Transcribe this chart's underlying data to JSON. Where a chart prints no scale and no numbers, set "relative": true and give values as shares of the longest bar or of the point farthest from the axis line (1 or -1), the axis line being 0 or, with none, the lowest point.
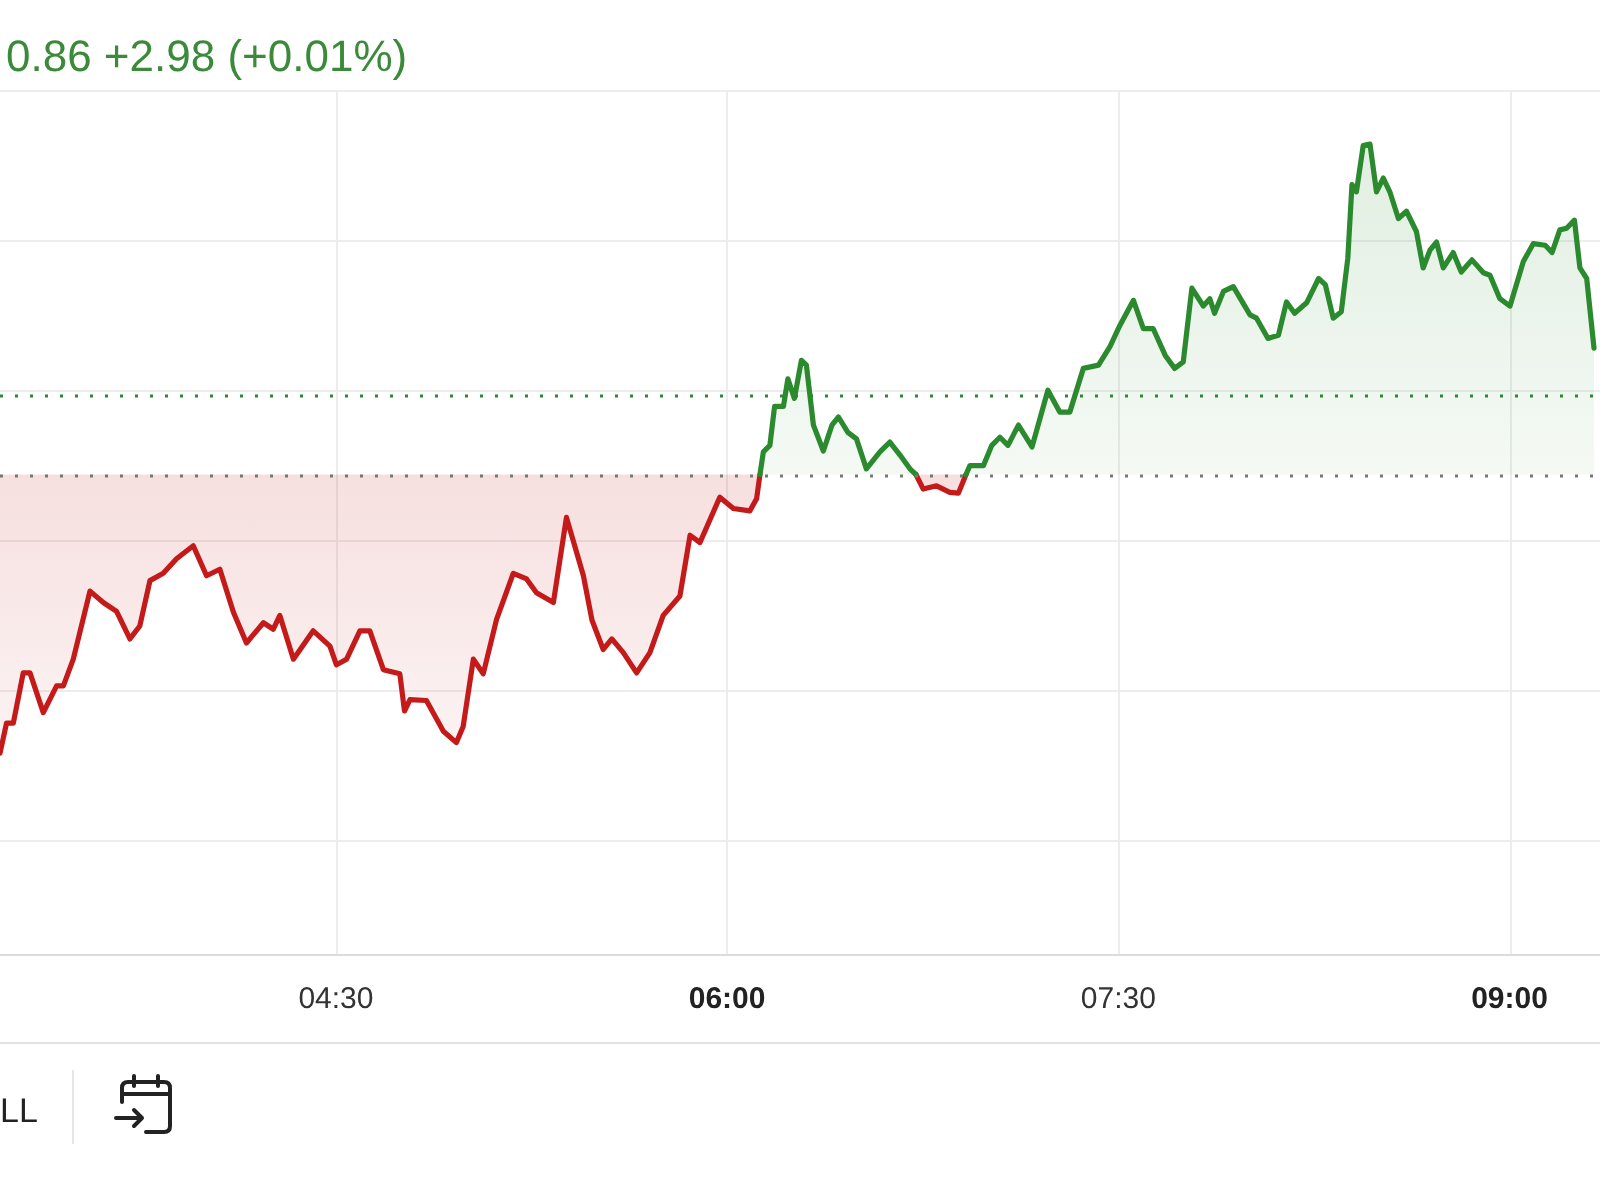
{
  "chart_data": {
    "type": "line",
    "title": "0.86 +2.98 (+0.01%)",
    "relative": true,
    "x": [
      3.212,
      3.237,
      3.263,
      3.301,
      3.327,
      3.378,
      3.429,
      3.455,
      3.493,
      3.557,
      3.608,
      3.659,
      3.71,
      3.748,
      3.787,
      3.838,
      3.889,
      3.953,
      4.004,
      4.055,
      4.107,
      4.157,
      4.222,
      4.26,
      4.285,
      4.337,
      4.413,
      4.477,
      4.502,
      4.541,
      4.592,
      4.63,
      4.682,
      4.745,
      4.763,
      4.784,
      4.847,
      4.912,
      4.962,
      4.988,
      5.027,
      5.065,
      5.116,
      5.18,
      5.231,
      5.269,
      5.334,
      5.384,
      5.449,
      5.482,
      5.525,
      5.558,
      5.602,
      5.653,
      5.704,
      5.755,
      5.819,
      5.858,
      5.896,
      5.972,
      6.024,
      6.087,
      6.113,
      6.126,
      6.139,
      6.164,
      6.182,
      6.216,
      6.233,
      6.258,
      6.285,
      6.304,
      6.331,
      6.369,
      6.402,
      6.427,
      6.463,
      6.496,
      6.534,
      6.586,
      6.624,
      6.663,
      6.701,
      6.724,
      6.752,
      6.803,
      6.854,
      6.887,
      6.916,
      6.931,
      6.983,
      7.015,
      7.046,
      7.077,
      7.117,
      7.169,
      7.23,
      7.276,
      7.314,
      7.366,
      7.424,
      7.468,
      7.506,
      7.558,
      7.596,
      7.634,
      7.68,
      7.716,
      7.749,
      7.782,
      7.826,
      7.851,
      7.869,
      7.903,
      7.941,
      8.005,
      8.03,
      8.074,
      8.114,
      8.145,
      8.176,
      8.222,
      8.268,
      8.294,
      8.324,
      8.355,
      8.38,
      8.396,
      8.413,
      8.439,
      8.465,
      8.49,
      8.516,
      8.541,
      8.574,
      8.605,
      8.643,
      8.669,
      8.695,
      8.72,
      8.746,
      8.784,
      8.815,
      8.856,
      8.9,
      8.925,
      8.963,
      9.002,
      9.053,
      9.091,
      9.137,
      9.163,
      9.193,
      9.219,
      9.249,
      9.27,
      9.296,
      9.324
    ],
    "series": [
      {
        "color": "#c41a1a",
        "values": [
          0.248,
          0.285,
          0.285,
          0.347,
          0.347,
          0.298,
          0.331,
          0.331,
          0.364,
          0.448,
          0.434,
          0.423,
          0.389,
          0.405,
          0.461,
          0.47,
          0.488,
          0.504,
          0.467,
          0.475,
          0.422,
          0.384,
          0.409,
          0.401,
          0.418,
          0.364,
          0.399,
          0.38,
          0.357,
          0.364,
          0.399,
          0.399,
          0.351,
          0.346,
          0.3,
          0.314,
          0.313,
          0.275,
          0.261,
          0.281,
          0.364,
          0.346,
          0.413,
          0.47,
          0.463,
          0.446,
          0.434,
          0.539,
          0.467,
          0.412,
          0.376,
          0.389,
          0.372,
          0.347,
          0.372,
          0.418,
          0.442,
          0.517,
          0.508,
          0.564,
          0.55,
          0.547,
          0.562,
          0.592,
          null,
          null,
          null,
          null,
          null,
          null,
          null,
          null,
          null,
          null,
          null,
          null,
          null,
          null,
          null,
          null,
          null,
          null,
          null,
          0.592,
          0.574,
          0.578,
          0.57,
          0.569,
          0.592,
          null,
          null,
          null,
          null,
          null,
          null,
          null,
          null,
          null,
          null,
          null,
          null,
          null,
          null,
          null,
          null,
          null,
          null,
          null,
          null,
          null,
          null,
          null,
          null,
          null,
          null,
          null,
          null,
          null,
          null,
          null,
          null,
          null,
          null,
          null,
          null,
          null,
          null,
          null,
          null,
          null,
          null,
          null,
          null,
          null,
          null,
          null,
          null,
          null,
          null,
          null,
          null,
          null,
          null,
          null,
          null,
          null,
          null,
          null,
          null,
          null,
          null,
          null,
          null,
          null,
          null,
          null,
          null,
          null
        ],
        "lower": [
          0.248,
          0.285,
          0.285,
          0.347,
          0.347,
          0.298,
          0.331,
          0.331,
          0.364,
          0.448,
          0.434,
          0.423,
          0.389,
          0.405,
          0.461,
          0.47,
          0.488,
          0.504,
          0.467,
          0.475,
          0.422,
          0.384,
          0.409,
          0.401,
          0.418,
          0.364,
          0.399,
          0.38,
          0.357,
          0.364,
          0.399,
          0.399,
          0.351,
          0.346,
          0.3,
          0.314,
          0.313,
          0.275,
          0.261,
          0.281,
          0.364,
          0.346,
          0.413,
          0.47,
          0.463,
          0.446,
          0.434,
          0.539,
          0.467,
          0.412,
          0.376,
          0.389,
          0.372,
          0.347,
          0.372,
          0.418,
          0.442,
          0.517,
          0.508,
          0.564,
          0.55,
          0.547,
          0.562,
          0.592,
          null,
          null,
          null,
          null,
          null,
          null,
          null,
          null,
          null,
          null,
          null,
          null,
          null,
          null,
          null,
          null,
          null,
          null,
          null,
          0.592,
          0.574,
          0.578,
          0.57,
          0.569,
          0.592,
          null,
          null,
          null,
          null,
          null,
          null,
          null,
          null,
          null,
          null,
          null,
          null,
          null,
          null,
          null,
          null,
          null,
          null,
          null,
          null,
          null,
          null,
          null,
          null,
          null,
          null,
          null,
          null,
          null,
          null,
          null,
          null,
          null,
          null,
          null,
          null,
          null,
          null,
          null,
          null,
          null,
          null,
          null,
          null,
          null,
          null,
          null,
          null,
          null,
          null,
          null,
          null,
          null,
          null,
          null,
          null,
          null,
          null,
          null,
          null,
          null,
          null,
          null,
          null,
          null,
          null,
          null,
          null,
          null
        ],
        "upper": [
          0.592,
          0.592,
          0.592,
          0.592,
          0.592,
          0.592,
          0.592,
          0.592,
          0.592,
          0.592,
          0.592,
          0.592,
          0.592,
          0.592,
          0.592,
          0.592,
          0.592,
          0.592,
          0.592,
          0.592,
          0.592,
          0.592,
          0.592,
          0.592,
          0.592,
          0.592,
          0.592,
          0.592,
          0.592,
          0.592,
          0.592,
          0.592,
          0.592,
          0.592,
          0.592,
          0.592,
          0.592,
          0.592,
          0.592,
          0.592,
          0.592,
          0.592,
          0.592,
          0.592,
          0.592,
          0.592,
          0.592,
          0.592,
          0.592,
          0.592,
          0.592,
          0.592,
          0.592,
          0.592,
          0.592,
          0.592,
          0.592,
          0.592,
          0.592,
          0.592,
          0.592,
          0.592,
          0.592,
          0.592,
          null,
          null,
          null,
          null,
          null,
          null,
          null,
          null,
          null,
          null,
          null,
          null,
          null,
          null,
          null,
          null,
          null,
          null,
          null,
          0.592,
          0.592,
          0.592,
          0.592,
          0.592,
          0.592,
          null,
          null,
          null,
          null,
          null,
          null,
          null,
          null,
          null,
          null,
          null,
          null,
          null,
          null,
          null,
          null,
          null,
          null,
          null,
          null,
          null,
          null,
          null,
          null,
          null,
          null,
          null,
          null,
          null,
          null,
          null,
          null,
          null,
          null,
          null,
          null,
          null,
          null,
          null,
          null,
          null,
          null,
          null,
          null,
          null,
          null,
          null,
          null,
          null,
          null,
          null,
          null,
          null,
          null,
          null,
          null,
          null,
          null,
          null,
          null,
          null,
          null,
          null,
          null,
          null,
          null,
          null,
          null,
          null
        ]
      },
      {
        "color": "#2b8a2e",
        "values": [
          null,
          null,
          null,
          null,
          null,
          null,
          null,
          null,
          null,
          null,
          null,
          null,
          null,
          null,
          null,
          null,
          null,
          null,
          null,
          null,
          null,
          null,
          null,
          null,
          null,
          null,
          null,
          null,
          null,
          null,
          null,
          null,
          null,
          null,
          null,
          null,
          null,
          null,
          null,
          null,
          null,
          null,
          null,
          null,
          null,
          null,
          null,
          null,
          null,
          null,
          null,
          null,
          null,
          null,
          null,
          null,
          null,
          null,
          null,
          null,
          null,
          null,
          null,
          0.592,
          0.62,
          0.628,
          0.676,
          0.676,
          0.71,
          0.686,
          0.733,
          0.727,
          0.653,
          0.621,
          0.653,
          0.663,
          0.644,
          0.636,
          0.599,
          0.62,
          0.632,
          0.616,
          0.599,
          0.592,
          null,
          null,
          null,
          null,
          0.592,
          0.603,
          0.603,
          0.628,
          0.638,
          0.628,
          0.653,
          0.626,
          0.696,
          0.669,
          0.669,
          0.723,
          0.727,
          0.75,
          0.776,
          0.807,
          0.772,
          0.772,
          0.739,
          0.723,
          0.731,
          0.822,
          0.8,
          0.809,
          0.791,
          0.818,
          0.824,
          0.789,
          0.785,
          0.76,
          0.764,
          0.805,
          0.791,
          0.804,
          0.834,
          0.826,
          0.785,
          0.793,
          0.859,
          0.95,
          0.941,
          0.998,
          1,
          0.941,
          0.958,
          0.941,
          0.908,
          0.917,
          0.892,
          0.847,
          0.869,
          0.879,
          0.847,
          0.866,
          0.842,
          0.857,
          0.841,
          0.838,
          0.809,
          0.8,
          0.855,
          0.877,
          0.875,
          0.866,
          0.894,
          0.896,
          0.906,
          0.847,
          0.834,
          0.748
        ],
        "lower": [
          null,
          null,
          null,
          null,
          null,
          null,
          null,
          null,
          null,
          null,
          null,
          null,
          null,
          null,
          null,
          null,
          null,
          null,
          null,
          null,
          null,
          null,
          null,
          null,
          null,
          null,
          null,
          null,
          null,
          null,
          null,
          null,
          null,
          null,
          null,
          null,
          null,
          null,
          null,
          null,
          null,
          null,
          null,
          null,
          null,
          null,
          null,
          null,
          null,
          null,
          null,
          null,
          null,
          null,
          null,
          null,
          null,
          null,
          null,
          null,
          null,
          null,
          null,
          0.592,
          0.592,
          0.592,
          0.592,
          0.592,
          0.592,
          0.592,
          0.592,
          0.592,
          0.592,
          0.592,
          0.592,
          0.592,
          0.592,
          0.592,
          0.592,
          0.592,
          0.592,
          0.592,
          0.592,
          0.592,
          null,
          null,
          null,
          null,
          0.592,
          0.592,
          0.592,
          0.592,
          0.592,
          0.592,
          0.592,
          0.592,
          0.592,
          0.592,
          0.592,
          0.592,
          0.592,
          0.592,
          0.592,
          0.592,
          0.592,
          0.592,
          0.592,
          0.592,
          0.592,
          0.592,
          0.592,
          0.592,
          0.592,
          0.592,
          0.592,
          0.592,
          0.592,
          0.592,
          0.592,
          0.592,
          0.592,
          0.592,
          0.592,
          0.592,
          0.592,
          0.592,
          0.592,
          0.592,
          0.592,
          0.592,
          0.592,
          0.592,
          0.592,
          0.592,
          0.592,
          0.592,
          0.592,
          0.592,
          0.592,
          0.592,
          0.592,
          0.592,
          0.592,
          0.592,
          0.592,
          0.592,
          0.592,
          0.592,
          0.592,
          0.592,
          0.592,
          0.592,
          0.592,
          0.592,
          0.592,
          0.592,
          0.592,
          0.592
        ],
        "upper": [
          null,
          null,
          null,
          null,
          null,
          null,
          null,
          null,
          null,
          null,
          null,
          null,
          null,
          null,
          null,
          null,
          null,
          null,
          null,
          null,
          null,
          null,
          null,
          null,
          null,
          null,
          null,
          null,
          null,
          null,
          null,
          null,
          null,
          null,
          null,
          null,
          null,
          null,
          null,
          null,
          null,
          null,
          null,
          null,
          null,
          null,
          null,
          null,
          null,
          null,
          null,
          null,
          null,
          null,
          null,
          null,
          null,
          null,
          null,
          null,
          null,
          null,
          null,
          0.592,
          0.62,
          0.628,
          0.676,
          0.676,
          0.71,
          0.686,
          0.733,
          0.727,
          0.653,
          0.621,
          0.653,
          0.663,
          0.644,
          0.636,
          0.599,
          0.62,
          0.632,
          0.616,
          0.599,
          0.592,
          null,
          null,
          null,
          null,
          0.592,
          0.603,
          0.603,
          0.628,
          0.638,
          0.628,
          0.653,
          0.626,
          0.696,
          0.669,
          0.669,
          0.723,
          0.727,
          0.75,
          0.776,
          0.807,
          0.772,
          0.772,
          0.739,
          0.723,
          0.731,
          0.822,
          0.8,
          0.809,
          0.791,
          0.818,
          0.824,
          0.789,
          0.785,
          0.76,
          0.764,
          0.805,
          0.791,
          0.804,
          0.834,
          0.826,
          0.785,
          0.793,
          0.859,
          0.95,
          0.941,
          0.998,
          1,
          0.941,
          0.958,
          0.941,
          0.908,
          0.917,
          0.892,
          0.847,
          0.869,
          0.879,
          0.847,
          0.866,
          0.842,
          0.857,
          0.841,
          0.838,
          0.809,
          0.8,
          0.855,
          0.877,
          0.875,
          0.866,
          0.894,
          0.896,
          0.906,
          0.847,
          0.834,
          0.748
        ]
      }
    ],
    "xlim": [
      3.212,
      9.347
    ],
    "xticks": [
      {
        "value": 4.5,
        "label": "04:30"
      },
      {
        "value": 6,
        "label": "06:00"
      },
      {
        "value": 7.5,
        "label": "07:30"
      },
      {
        "value": 9,
        "label": "09:00"
      }
    ],
    "ref_lines": [
      {
        "axis": "y",
        "value": 0.592,
        "color": "#777777",
        "line_style": "dotted"
      },
      {
        "axis": "y",
        "value": 0.692,
        "color": "#2b8a2e",
        "line_style": "dotted"
      }
    ],
    "grid": true,
    "marker": "none",
    "line_style": "solid",
    "annotations": [
      "LL"
    ]
  }
}
